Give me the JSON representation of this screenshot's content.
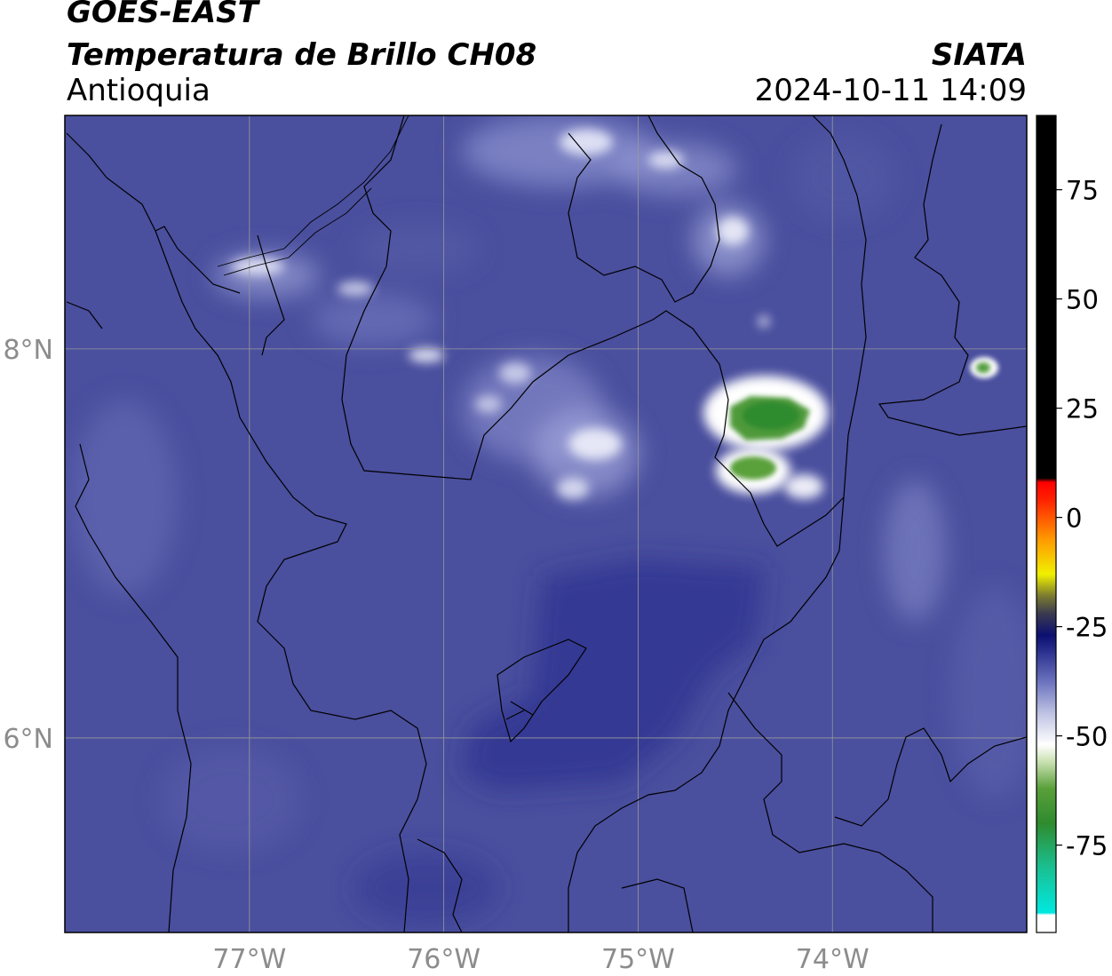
{
  "header": {
    "satellite": "GOES-EAST",
    "product": "Temperatura de Brillo CH08",
    "region": "Antioquia",
    "organization": "SIATA",
    "datetime": "2024-10-11 14:09"
  },
  "map": {
    "lon_range": [
      -77.95,
      -73.0
    ],
    "lat_range": [
      5.0,
      9.2
    ],
    "lon_ticks": [
      {
        "value": -77,
        "label": "77°W"
      },
      {
        "value": -76,
        "label": "76°W"
      },
      {
        "value": -75,
        "label": "75°W"
      },
      {
        "value": -74,
        "label": "74°W"
      }
    ],
    "lat_ticks": [
      {
        "value": 8,
        "label": "8°N"
      },
      {
        "value": 6,
        "label": "6°N"
      }
    ],
    "gridlines": true,
    "background_color": "#4a4f9e",
    "features": [
      {
        "name": "main-cold-cloud-core",
        "lon": -74.3,
        "lat": 7.75,
        "tb": -65
      },
      {
        "name": "secondary-cold-cloud-core",
        "lon": -74.35,
        "lat": 7.45,
        "tb": -62
      },
      {
        "name": "eastern-cold-cell",
        "lon": -73.1,
        "lat": 7.92,
        "tb": -58
      }
    ]
  },
  "colorbar": {
    "min": -95,
    "max": 92,
    "ticks": [
      {
        "value": 75,
        "label": "75"
      },
      {
        "value": 50,
        "label": "50"
      },
      {
        "value": 25,
        "label": "25"
      },
      {
        "value": 0,
        "label": "0"
      },
      {
        "value": -25,
        "label": "-25"
      },
      {
        "value": -50,
        "label": "-50"
      },
      {
        "value": -75,
        "label": "-75"
      }
    ],
    "stops": [
      {
        "value": -95,
        "color": "#ffffff"
      },
      {
        "value": -91,
        "color": "#ffffff"
      },
      {
        "value": -90.5,
        "color": "#00e8e0"
      },
      {
        "value": -80,
        "color": "#1abf90"
      },
      {
        "value": -70,
        "color": "#2e8b2e"
      },
      {
        "value": -62,
        "color": "#5aa03a"
      },
      {
        "value": -56,
        "color": "#c8e0b0"
      },
      {
        "value": -52,
        "color": "#ffffff"
      },
      {
        "value": -45,
        "color": "#c0c4e4"
      },
      {
        "value": -38,
        "color": "#7077c0"
      },
      {
        "value": -31,
        "color": "#2d3390"
      },
      {
        "value": -27,
        "color": "#0c1070"
      },
      {
        "value": -22,
        "color": "#3a3a50"
      },
      {
        "value": -18,
        "color": "#7a7a30"
      },
      {
        "value": -13,
        "color": "#f0f000"
      },
      {
        "value": -5,
        "color": "#ff9900"
      },
      {
        "value": 4,
        "color": "#ff2200"
      },
      {
        "value": 8,
        "color": "#ff0000"
      },
      {
        "value": 9,
        "color": "#000000"
      },
      {
        "value": 92,
        "color": "#000000"
      }
    ]
  },
  "colors": {
    "tick_text": "#8c8c8c",
    "border_lines": "#000000",
    "grid_lines": "#9a9a9a"
  }
}
